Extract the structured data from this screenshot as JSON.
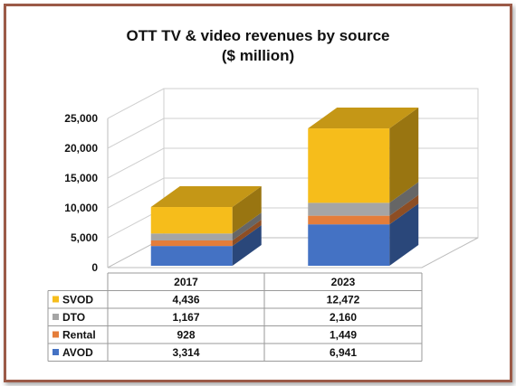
{
  "colors": {
    "border": "#9b5a47",
    "SVOD": "#f6bd1b",
    "DTO": "#a5a5a5",
    "Rental": "#e47d3a",
    "AVOD": "#4472c4"
  },
  "chart_data": {
    "type": "bar",
    "stacked": true,
    "three_d": true,
    "title": "OTT TV & video revenues by source",
    "subtitle": "($ million)",
    "categories": [
      "2017",
      "2023"
    ],
    "series": [
      {
        "name": "SVOD",
        "values": [
          4436,
          12472
        ],
        "labels": [
          "4,436",
          "12,472"
        ]
      },
      {
        "name": "DTO",
        "values": [
          1167,
          2160
        ],
        "labels": [
          "1,167",
          "2,160"
        ]
      },
      {
        "name": "Rental",
        "values": [
          928,
          1449
        ],
        "labels": [
          "928",
          "1,449"
        ]
      },
      {
        "name": "AVOD",
        "values": [
          3314,
          6941
        ],
        "labels": [
          "3,314",
          "6,941"
        ]
      }
    ],
    "stack_order": [
      "AVOD",
      "Rental",
      "DTO",
      "SVOD"
    ],
    "ylim": [
      0,
      25000
    ],
    "yticks": [
      0,
      5000,
      10000,
      15000,
      20000,
      25000
    ],
    "ytick_labels": [
      "0",
      "5,000",
      "10,000",
      "15,000",
      "20,000",
      "25,000"
    ],
    "grid": true,
    "legend": "data-table-left"
  }
}
